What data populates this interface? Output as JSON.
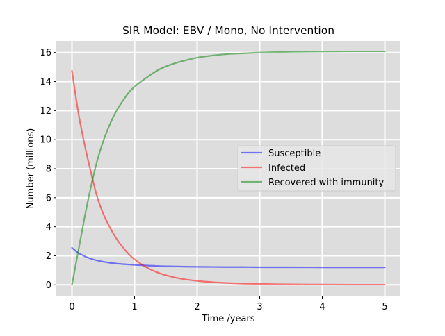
{
  "chart_data": {
    "type": "line",
    "title": "SIR Model: EBV / Mono, No Intervention",
    "xlabel": "Time /years",
    "ylabel": "Number (millions)",
    "xlim": [
      -0.25,
      5.25
    ],
    "ylim": [
      -0.8,
      16.8
    ],
    "xticks": [
      0,
      1,
      2,
      3,
      4,
      5
    ],
    "xtick_labels": [
      "0",
      "1",
      "2",
      "3",
      "4",
      "5"
    ],
    "yticks": [
      0,
      2,
      4,
      6,
      8,
      10,
      12,
      14,
      16
    ],
    "ytick_labels": [
      "0",
      "2",
      "4",
      "6",
      "8",
      "10",
      "12",
      "14",
      "16"
    ],
    "grid": true,
    "legend_position": "center-right",
    "x": [
      0,
      0.1,
      0.2,
      0.3,
      0.4,
      0.5,
      0.6,
      0.7,
      0.8,
      0.9,
      1.0,
      1.2,
      1.4,
      1.6,
      1.8,
      2.0,
      2.25,
      2.5,
      2.75,
      3.0,
      3.5,
      4.0,
      4.5,
      5.0
    ],
    "series": [
      {
        "name": "Susceptible",
        "color": "#0000ff",
        "values": [
          2.55,
          2.2,
          1.97,
          1.8,
          1.68,
          1.59,
          1.52,
          1.47,
          1.43,
          1.4,
          1.37,
          1.33,
          1.29,
          1.27,
          1.25,
          1.24,
          1.23,
          1.22,
          1.22,
          1.21,
          1.21,
          1.2,
          1.2,
          1.2
        ]
      },
      {
        "name": "Infected",
        "color": "#ff0000",
        "values": [
          14.75,
          11.9,
          9.7,
          7.8,
          6.1,
          4.9,
          4.0,
          3.25,
          2.65,
          2.15,
          1.75,
          1.18,
          0.8,
          0.55,
          0.38,
          0.27,
          0.18,
          0.12,
          0.08,
          0.06,
          0.03,
          0.02,
          0.01,
          0.01
        ]
      },
      {
        "name": "Recovered with immunity",
        "color": "#008000",
        "values": [
          0.0,
          2.3,
          4.6,
          6.7,
          8.5,
          9.9,
          11.0,
          11.9,
          12.6,
          13.2,
          13.65,
          14.3,
          14.85,
          15.2,
          15.45,
          15.65,
          15.8,
          15.9,
          15.95,
          16.0,
          16.05,
          16.07,
          16.08,
          16.08
        ]
      }
    ],
    "style": {
      "background": "#dddddd",
      "grid_color": "#ffffff",
      "line_alpha": 0.5
    }
  }
}
